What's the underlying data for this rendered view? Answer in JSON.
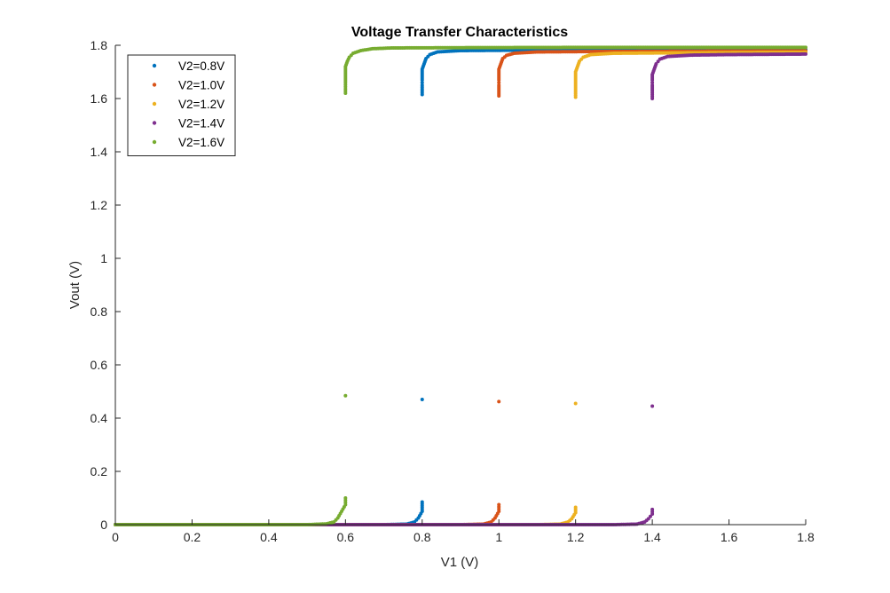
{
  "chart_data": {
    "type": "scatter",
    "title": "Voltage Transfer Characteristics",
    "xlabel": "V1 (V)",
    "ylabel": "Vout (V)",
    "xlim": [
      0,
      1.8
    ],
    "ylim": [
      0,
      1.8
    ],
    "xticks": [
      0,
      0.2,
      0.4,
      0.6,
      0.8,
      1,
      1.2,
      1.4,
      1.6,
      1.8
    ],
    "xtick_labels": [
      "0",
      "0.2",
      "0.4",
      "0.6",
      "0.8",
      "1",
      "1.2",
      "1.4",
      "1.6",
      "1.8"
    ],
    "yticks": [
      0,
      0.2,
      0.4,
      0.6,
      0.8,
      1,
      1.2,
      1.4,
      1.6,
      1.8
    ],
    "ytick_labels": [
      "0",
      "0.2",
      "0.4",
      "0.6",
      "0.8",
      "1",
      "1.2",
      "1.4",
      "1.6",
      "1.8"
    ],
    "grid": false,
    "legend_position": "top-left",
    "series": [
      {
        "name": "V2=0.8V",
        "color": "#0072BD",
        "x": [
          0.8,
          0.8,
          0.8,
          0.8,
          0.8,
          0.8,
          0.8
        ],
        "y": [
          0.47,
          0.085,
          1.615,
          1.65,
          1.67,
          1.69,
          1.71
        ],
        "points": [
          [
            0.0,
            0.0
          ],
          [
            0.2,
            0.0
          ],
          [
            0.4,
            0.0
          ],
          [
            0.6,
            0.0
          ],
          [
            0.7,
            0.0
          ],
          [
            0.76,
            0.002
          ],
          [
            0.78,
            0.01
          ],
          [
            0.79,
            0.025
          ],
          [
            0.8,
            0.05
          ],
          [
            0.8,
            0.085
          ],
          [
            0.8,
            0.47
          ],
          [
            0.8,
            1.615
          ],
          [
            0.8,
            1.65
          ],
          [
            0.8,
            1.67
          ],
          [
            0.8,
            1.69
          ],
          [
            0.8,
            1.71
          ],
          [
            0.805,
            1.73
          ],
          [
            0.81,
            1.75
          ],
          [
            0.82,
            1.765
          ],
          [
            0.84,
            1.775
          ],
          [
            0.9,
            1.78
          ],
          [
            1.0,
            1.781
          ],
          [
            1.2,
            1.782
          ],
          [
            1.4,
            1.783
          ],
          [
            1.6,
            1.783
          ],
          [
            1.8,
            1.784
          ]
        ]
      },
      {
        "name": "V2=1.0V",
        "color": "#D95319",
        "points": [
          [
            0.0,
            0.0
          ],
          [
            0.4,
            0.0
          ],
          [
            0.8,
            0.0
          ],
          [
            0.9,
            0.0
          ],
          [
            0.96,
            0.002
          ],
          [
            0.98,
            0.01
          ],
          [
            0.99,
            0.025
          ],
          [
            1.0,
            0.05
          ],
          [
            1.0,
            0.075
          ],
          [
            1.0,
            0.462
          ],
          [
            1.0,
            1.61
          ],
          [
            1.0,
            1.65
          ],
          [
            1.0,
            1.67
          ],
          [
            1.0,
            1.69
          ],
          [
            1.0,
            1.71
          ],
          [
            1.005,
            1.73
          ],
          [
            1.01,
            1.75
          ],
          [
            1.02,
            1.762
          ],
          [
            1.04,
            1.77
          ],
          [
            1.1,
            1.775
          ],
          [
            1.3,
            1.777
          ],
          [
            1.5,
            1.778
          ],
          [
            1.8,
            1.779
          ]
        ]
      },
      {
        "name": "V2=1.2V",
        "color": "#EDB120",
        "points": [
          [
            0.0,
            0.0
          ],
          [
            0.4,
            0.0
          ],
          [
            0.8,
            0.0
          ],
          [
            1.1,
            0.0
          ],
          [
            1.16,
            0.002
          ],
          [
            1.18,
            0.01
          ],
          [
            1.19,
            0.022
          ],
          [
            1.2,
            0.045
          ],
          [
            1.2,
            0.065
          ],
          [
            1.2,
            0.455
          ],
          [
            1.2,
            1.605
          ],
          [
            1.2,
            1.64
          ],
          [
            1.2,
            1.66
          ],
          [
            1.2,
            1.68
          ],
          [
            1.2,
            1.7
          ],
          [
            1.205,
            1.72
          ],
          [
            1.21,
            1.74
          ],
          [
            1.22,
            1.755
          ],
          [
            1.24,
            1.765
          ],
          [
            1.3,
            1.77
          ],
          [
            1.5,
            1.772
          ],
          [
            1.8,
            1.774
          ]
        ]
      },
      {
        "name": "V2=1.4V",
        "color": "#7E2F8E",
        "points": [
          [
            0.0,
            0.0
          ],
          [
            0.4,
            0.0
          ],
          [
            0.8,
            0.0
          ],
          [
            1.3,
            0.0
          ],
          [
            1.36,
            0.002
          ],
          [
            1.38,
            0.01
          ],
          [
            1.39,
            0.022
          ],
          [
            1.4,
            0.04
          ],
          [
            1.4,
            0.057
          ],
          [
            1.4,
            0.445
          ],
          [
            1.4,
            1.6
          ],
          [
            1.4,
            1.63
          ],
          [
            1.4,
            1.65
          ],
          [
            1.4,
            1.67
          ],
          [
            1.4,
            1.69
          ],
          [
            1.405,
            1.71
          ],
          [
            1.41,
            1.73
          ],
          [
            1.42,
            1.748
          ],
          [
            1.44,
            1.758
          ],
          [
            1.5,
            1.763
          ],
          [
            1.6,
            1.765
          ],
          [
            1.8,
            1.767
          ]
        ]
      },
      {
        "name": "V2=1.6V",
        "color": "#77AC30",
        "points": [
          [
            0.0,
            0.0
          ],
          [
            0.2,
            0.0
          ],
          [
            0.4,
            0.0
          ],
          [
            0.5,
            0.0
          ],
          [
            0.55,
            0.003
          ],
          [
            0.57,
            0.01
          ],
          [
            0.58,
            0.025
          ],
          [
            0.59,
            0.05
          ],
          [
            0.6,
            0.075
          ],
          [
            0.6,
            0.1
          ],
          [
            0.6,
            0.484
          ],
          [
            0.6,
            1.62
          ],
          [
            0.6,
            1.66
          ],
          [
            0.6,
            1.68
          ],
          [
            0.6,
            1.7
          ],
          [
            0.6,
            1.72
          ],
          [
            0.605,
            1.74
          ],
          [
            0.61,
            1.755
          ],
          [
            0.62,
            1.77
          ],
          [
            0.64,
            1.78
          ],
          [
            0.67,
            1.787
          ],
          [
            0.72,
            1.79
          ],
          [
            0.9,
            1.791
          ],
          [
            1.2,
            1.792
          ],
          [
            1.5,
            1.792
          ],
          [
            1.8,
            1.792
          ]
        ]
      }
    ]
  }
}
